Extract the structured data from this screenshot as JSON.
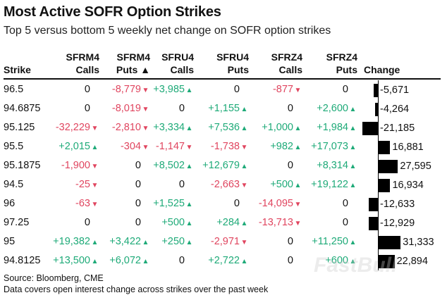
{
  "title": "Most Active SOFR Option Strikes",
  "subtitle": "Top 5 versus bottom 5 weekly net change on SOFR option strikes",
  "source": "Source: Bloomberg, CME",
  "note": "Data covers open interest change across strikes over the past week",
  "watermark": "FastBull",
  "colors": {
    "negative": "#e0455f",
    "positive": "#1eaa78",
    "bar": "#000000"
  },
  "chart_data": {
    "type": "table",
    "columns": [
      {
        "l1": "",
        "l2": "Strike"
      },
      {
        "l1": "SFRM4",
        "l2": "Calls"
      },
      {
        "l1": "SFRM4",
        "l2": "Puts ▲"
      },
      {
        "l1": "SFRU4",
        "l2": "Calls"
      },
      {
        "l1": "SFRU4",
        "l2": "Puts"
      },
      {
        "l1": "SFRZ4",
        "l2": "Calls"
      },
      {
        "l1": "SFRZ4",
        "l2": "Puts"
      },
      {
        "l1": "",
        "l2": "Change"
      }
    ],
    "rows": [
      {
        "strike": "96.5",
        "values": [
          "0",
          "-8,779",
          "+3,985",
          "0",
          "-877",
          "0"
        ],
        "change": -5671,
        "change_label": "-5,671"
      },
      {
        "strike": "94.6875",
        "values": [
          "0",
          "-8,019",
          "0",
          "+1,155",
          "0",
          "+2,600"
        ],
        "change": -4264,
        "change_label": "-4,264"
      },
      {
        "strike": "95.125",
        "values": [
          "-32,229",
          "-2,810",
          "+3,334",
          "+7,536",
          "+1,000",
          "+1,984"
        ],
        "change": -21185,
        "change_label": "-21,185"
      },
      {
        "strike": "95.5",
        "values": [
          "+2,015",
          "-304",
          "-1,147",
          "-1,738",
          "+982",
          "+17,073"
        ],
        "change": 16881,
        "change_label": "16,881"
      },
      {
        "strike": "95.1875",
        "values": [
          "-1,900",
          "0",
          "+8,502",
          "+12,679",
          "0",
          "+8,314"
        ],
        "change": 27595,
        "change_label": "27,595"
      },
      {
        "strike": "94.5",
        "values": [
          "-25",
          "0",
          "0",
          "-2,663",
          "+500",
          "+19,122"
        ],
        "change": 16934,
        "change_label": "16,934"
      },
      {
        "strike": "96",
        "values": [
          "-63",
          "0",
          "+1,525",
          "0",
          "-14,095",
          "0"
        ],
        "change": -12633,
        "change_label": "-12,633"
      },
      {
        "strike": "97.25",
        "values": [
          "0",
          "0",
          "+500",
          "+284",
          "-13,713",
          "0"
        ],
        "change": -12929,
        "change_label": "-12,929"
      },
      {
        "strike": "95",
        "values": [
          "+19,382",
          "+3,422",
          "+250",
          "-2,971",
          "0",
          "+11,250"
        ],
        "change": 31333,
        "change_label": "31,333"
      },
      {
        "strike": "94.8125",
        "values": [
          "+13,500",
          "+6,072",
          "0",
          "+2,722",
          "0",
          "+600"
        ],
        "change": 22894,
        "change_label": "22,894"
      }
    ]
  }
}
